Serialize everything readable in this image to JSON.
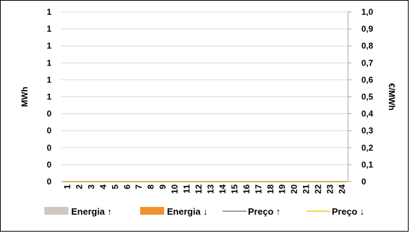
{
  "chart_data": {
    "type": "bar",
    "categories": [
      "1",
      "2",
      "3",
      "4",
      "5",
      "6",
      "7",
      "8",
      "9",
      "10",
      "11",
      "12",
      "13",
      "14",
      "15",
      "16",
      "17",
      "18",
      "19",
      "20",
      "21",
      "22",
      "23",
      "24"
    ],
    "ylabel": "MWh",
    "y2label": "€/MWh",
    "ylim": [
      0,
      1
    ],
    "y2lim": [
      0,
      1
    ],
    "y_tick_labels": [
      "0",
      "0",
      "0",
      "0",
      "0",
      "1",
      "1",
      "1",
      "1",
      "1",
      "1"
    ],
    "y2_tick_labels": [
      "0",
      "0,1",
      "0,2",
      "0,3",
      "0,4",
      "0,5",
      "0,6",
      "0,7",
      "0,8",
      "0,9",
      "1,0"
    ],
    "grid": true,
    "legend_position": "bottom",
    "series": [
      {
        "name": "Energia ↑",
        "kind": "bar",
        "axis": "left",
        "color": "#cdc9c2",
        "values": [
          0,
          0,
          0,
          0,
          0,
          0,
          0,
          0,
          0,
          0,
          0,
          0,
          0,
          0,
          0,
          0,
          0,
          0,
          0,
          0,
          0,
          0,
          0,
          0
        ]
      },
      {
        "name": "Energia ↓",
        "kind": "bar",
        "axis": "left",
        "color": "#f0912d",
        "values": [
          0,
          0,
          0,
          0,
          0,
          0,
          0,
          0,
          0,
          0,
          0,
          0,
          0,
          0,
          0,
          0,
          0,
          0,
          0,
          0,
          0,
          0,
          0,
          0
        ]
      },
      {
        "name": "Preço ↑",
        "kind": "line",
        "axis": "right",
        "color": "#808080",
        "values": [
          0,
          0,
          0,
          0,
          0,
          0,
          0,
          0,
          0,
          0,
          0,
          0,
          0,
          0,
          0,
          0,
          0,
          0,
          0,
          0,
          0,
          0,
          0,
          0
        ]
      },
      {
        "name": "Preço ↓",
        "kind": "line",
        "axis": "right",
        "color": "#f5c518",
        "values": [
          0,
          0,
          0,
          0,
          0,
          0,
          0,
          0,
          0,
          0,
          0,
          0,
          0,
          0,
          0,
          0,
          0,
          0,
          0,
          0,
          0,
          0,
          0,
          0
        ]
      }
    ]
  }
}
